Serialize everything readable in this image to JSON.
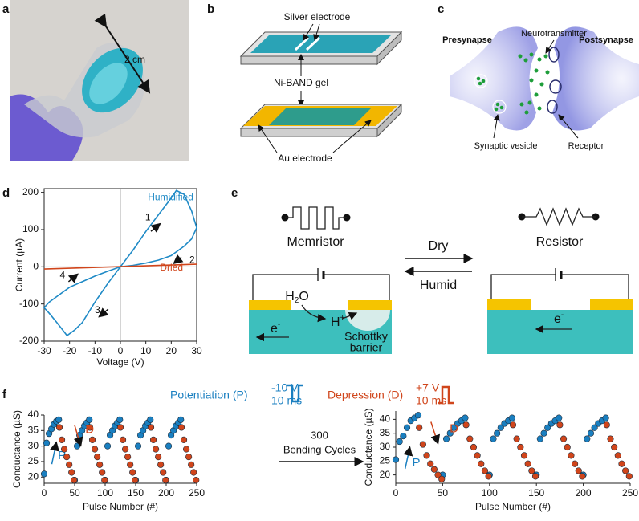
{
  "panel_labels": [
    "a",
    "b",
    "c",
    "d",
    "e",
    "f"
  ],
  "photo": {
    "label": "2 cm"
  },
  "device": {
    "silver": "Silver electrode",
    "gel": "Ni-BAND gel",
    "gold": "Au electrode"
  },
  "synapse": {
    "pre": "Presynapse",
    "transmitter": "Neurotransmitter",
    "post": "Postsynapse",
    "vesicle": "Synaptic vesicle",
    "receptor": "Receptor"
  },
  "switching": {
    "memristor": "Memristor",
    "resistor": "Resistor",
    "dry": "Dry",
    "humid": "Humid",
    "water": [
      "H",
      "2",
      "O"
    ],
    "proton": [
      "H",
      "+"
    ],
    "electron": [
      "e",
      "-"
    ],
    "barrier": [
      "Schottky",
      "barrier"
    ]
  },
  "pulses": {
    "potentiation": "Potentiation (P)",
    "p_amplitude": "-10 V",
    "p_width": "10 ms",
    "depression": "Depression (D)",
    "d_amplitude": "+7 V",
    "d_width": "10 ms",
    "cycles": "300",
    "cycles_label": "Bending Cycles"
  },
  "chart_data": [
    {
      "type": "line",
      "x_label": "Voltage (V)",
      "y_label": "Current (µA)",
      "xlim": [
        -30,
        30
      ],
      "xticks": [
        -30,
        -20,
        -10,
        0,
        10,
        20,
        30
      ],
      "ylim": [
        -200,
        210
      ],
      "yticks": [
        -200,
        -100,
        0,
        100,
        200
      ],
      "annotations": [
        "1",
        "2",
        "3",
        "4"
      ],
      "series": [
        {
          "name": "Humidified",
          "color": "#1f8ac6",
          "x": [
            0,
            5,
            10,
            15,
            20,
            22,
            25,
            28,
            30,
            28,
            25,
            20,
            15,
            10,
            5,
            0,
            -5,
            -10,
            -15,
            -20,
            -25,
            -28,
            -30,
            -28,
            -25,
            -21,
            -18,
            -15,
            -10,
            -5,
            0
          ],
          "values": [
            0,
            45,
            95,
            140,
            185,
            205,
            195,
            150,
            105,
            75,
            55,
            30,
            18,
            10,
            4,
            0,
            -12,
            -25,
            -40,
            -55,
            -80,
            -95,
            -110,
            -125,
            -150,
            -185,
            -170,
            -150,
            -95,
            -45,
            0
          ]
        },
        {
          "name": "Dried",
          "color": "#d0451b",
          "x": [
            -30,
            30
          ],
          "values": [
            -6,
            7
          ]
        }
      ]
    },
    {
      "type": "scatter",
      "x_label": "Pulse Number (#)",
      "y_label": "Conductance (µS)",
      "xlim": [
        0,
        250
      ],
      "xticks": [
        0,
        50,
        100,
        150,
        200,
        250
      ],
      "ylim": [
        18,
        40
      ],
      "yticks": [
        20,
        25,
        30,
        35,
        40
      ],
      "series": [
        {
          "name": "P",
          "color": "#1a7fc0",
          "x": [
            0,
            4,
            8,
            12,
            16,
            20,
            24,
            50,
            54,
            58,
            62,
            66,
            70,
            74,
            100,
            104,
            108,
            112,
            116,
            120,
            124,
            150,
            154,
            158,
            162,
            166,
            170,
            174,
            200,
            204,
            208,
            212,
            216,
            220,
            224
          ],
          "values": [
            21,
            31,
            34,
            35.5,
            37,
            38,
            38.5,
            19,
            30,
            33.5,
            35,
            36.5,
            37.5,
            38.5,
            19,
            30,
            33.5,
            35,
            36.5,
            37.5,
            38.5,
            19,
            30,
            33.5,
            35,
            36.5,
            37.5,
            38.5,
            19,
            30,
            33.5,
            35,
            36.5,
            37.5,
            38.5
          ]
        },
        {
          "name": "D",
          "color": "#d0451b",
          "x": [
            25,
            29,
            33,
            37,
            41,
            45,
            49,
            75,
            79,
            83,
            87,
            91,
            95,
            99,
            125,
            129,
            133,
            137,
            141,
            145,
            149,
            175,
            179,
            183,
            187,
            191,
            195,
            199,
            225,
            229,
            233,
            237,
            241,
            245,
            249
          ],
          "values": [
            36,
            32,
            29,
            26.5,
            24,
            21.5,
            19,
            36,
            32,
            29,
            26.5,
            24,
            21.5,
            19,
            36,
            32,
            29,
            26.5,
            24,
            21.5,
            19,
            36,
            32,
            29,
            26.5,
            24,
            21.5,
            19,
            36,
            32,
            29,
            26.5,
            24,
            21.5,
            19
          ]
        }
      ]
    },
    {
      "type": "scatter",
      "x_label": "Pulse Number (#)",
      "y_label": "Conductance (µS)",
      "xlim": [
        0,
        250
      ],
      "xticks": [
        0,
        50,
        100,
        150,
        200,
        250
      ],
      "ylim": [
        17,
        43
      ],
      "yticks": [
        20,
        25,
        30,
        35,
        40
      ],
      "series": [
        {
          "name": "P",
          "color": "#1a7fc0",
          "x": [
            0,
            4,
            8,
            12,
            16,
            20,
            24,
            50,
            54,
            58,
            62,
            66,
            70,
            74,
            100,
            104,
            108,
            112,
            116,
            120,
            124,
            150,
            154,
            158,
            162,
            166,
            170,
            174,
            200,
            204,
            208,
            212,
            216,
            220,
            224
          ],
          "values": [
            25.5,
            32,
            34,
            37,
            39.5,
            40.5,
            41.5,
            20,
            33,
            35,
            37,
            38.5,
            39.5,
            40.5,
            20,
            33,
            35,
            37,
            38.5,
            39.5,
            40.5,
            20,
            33,
            35,
            37,
            38.5,
            39.5,
            40.5,
            20,
            33,
            35,
            37,
            38.5,
            39.5,
            40.5
          ]
        },
        {
          "name": "D",
          "color": "#d0451b",
          "x": [
            25,
            29,
            33,
            37,
            41,
            45,
            49,
            75,
            79,
            83,
            87,
            91,
            95,
            99,
            125,
            129,
            133,
            137,
            141,
            145,
            149,
            175,
            179,
            183,
            187,
            191,
            195,
            199,
            225,
            229,
            233,
            237,
            241,
            245,
            249
          ],
          "values": [
            37,
            31,
            27,
            24,
            22,
            20,
            18.5,
            38,
            33,
            30,
            27,
            24,
            21.5,
            19.5,
            38,
            33,
            30,
            27,
            24,
            21.5,
            19.5,
            38,
            33,
            30,
            27,
            24,
            21.5,
            19.5,
            38,
            33,
            30,
            27,
            24,
            21.5,
            19.5
          ]
        }
      ]
    }
  ]
}
